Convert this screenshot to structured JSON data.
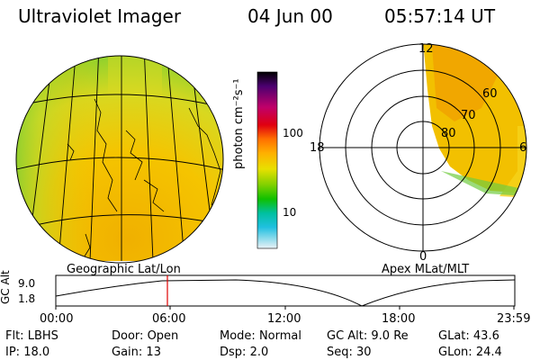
{
  "header": {
    "instrument": "Ultraviolet Imager",
    "date": "04 Jun 00",
    "time": "05:57:14 UT"
  },
  "left_panel": {
    "label": "Geographic Lat/Lon"
  },
  "right_panel": {
    "label": "Apex MLat/MLT",
    "mlt_labels": {
      "top": "12",
      "left": "18",
      "right": "6",
      "bottom": "0"
    },
    "lat_labels": [
      "60",
      "70",
      "80"
    ]
  },
  "colorbar": {
    "unit_label": "photon cm⁻²s⁻¹",
    "ticks": [
      "100",
      "10"
    ],
    "colors": [
      "#000000",
      "#4b0070",
      "#c0006a",
      "#e00010",
      "#ff7000",
      "#ffb000",
      "#e8e000",
      "#80d000",
      "#10c000",
      "#00c0a0",
      "#20c0e0",
      "#d8e8f0"
    ]
  },
  "altitude_plot": {
    "ylabel": "GC Alt",
    "yticks": [
      "9.0",
      "1.8"
    ],
    "xticks": [
      "00:00",
      "06:00",
      "12:00",
      "18:00",
      "23:59"
    ],
    "marker_time": "05:57"
  },
  "info": {
    "row1": [
      {
        "label": "Flt:",
        "value": "LBHS"
      },
      {
        "label": "Door:",
        "value": "Open"
      },
      {
        "label": "Mode:",
        "value": "Normal"
      },
      {
        "label": "GC Alt:",
        "value": "9.0 Re"
      },
      {
        "label": "GLat:",
        "value": "43.6"
      }
    ],
    "row2": [
      {
        "label": "IP:",
        "value": "18.0"
      },
      {
        "label": "Gain:",
        "value": "13"
      },
      {
        "label": "Dsp:",
        "value": "2.0"
      },
      {
        "label": "Seq:",
        "value": "30"
      },
      {
        "label": "GLon:",
        "value": "24.4"
      }
    ]
  }
}
